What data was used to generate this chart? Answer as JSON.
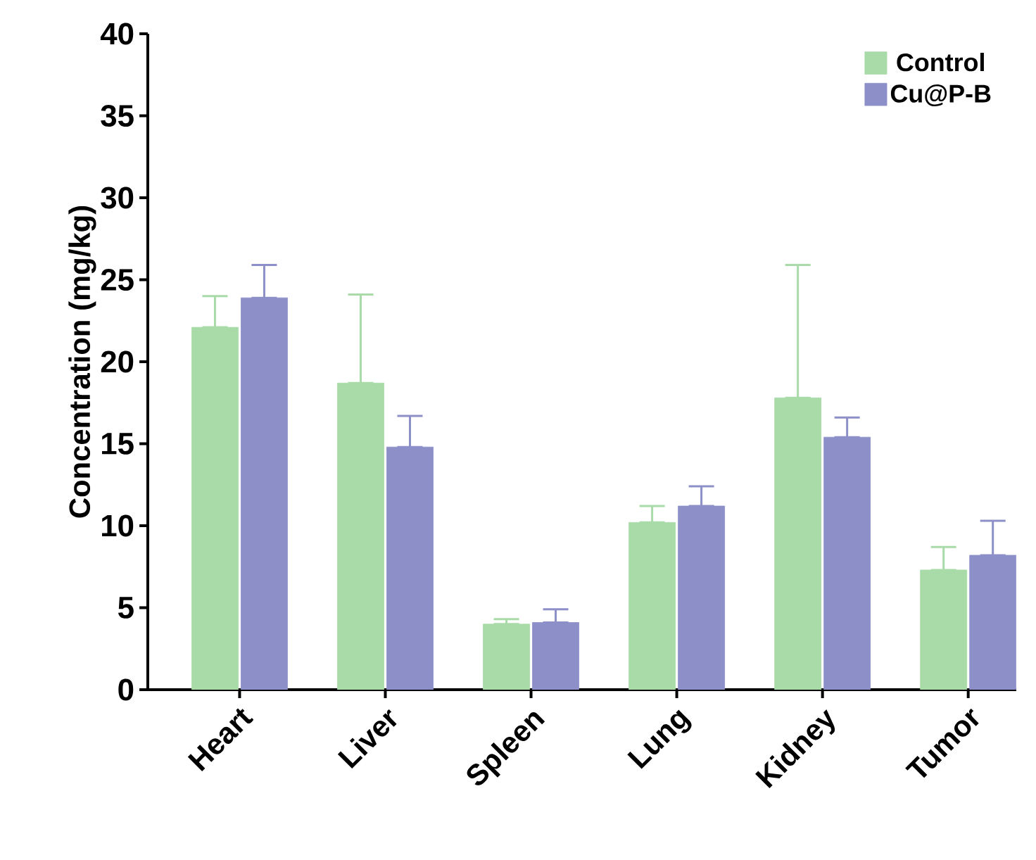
{
  "chart_data": {
    "type": "bar",
    "ylabel": "Concentration (mg/kg)",
    "categories": [
      "Heart",
      "Liver",
      "Spleen",
      "Lung",
      "Kidney",
      "Tumor"
    ],
    "series": [
      {
        "name": "Control",
        "color": "#a8dba8",
        "values": [
          22.1,
          18.7,
          4.0,
          10.2,
          17.8,
          7.3
        ],
        "errors": [
          [
            22.1,
            24.0
          ],
          [
            18.7,
            24.1
          ],
          [
            4.0,
            4.3
          ],
          [
            10.2,
            11.2
          ],
          [
            17.8,
            25.9
          ],
          [
            7.3,
            8.7
          ]
        ]
      },
      {
        "name": "Cu@P-B",
        "color": "#8c8fc8",
        "values": [
          23.9,
          14.8,
          4.1,
          11.2,
          15.4,
          8.2
        ],
        "errors": [
          [
            23.9,
            25.9
          ],
          [
            14.8,
            16.7
          ],
          [
            4.1,
            4.9
          ],
          [
            11.2,
            12.4
          ],
          [
            15.4,
            16.6
          ],
          [
            8.2,
            10.3
          ]
        ]
      }
    ],
    "ylim": [
      0,
      40
    ],
    "yticks": [
      0,
      5,
      10,
      15,
      20,
      25,
      30,
      35,
      40
    ],
    "grid": false,
    "legend": "top right"
  }
}
